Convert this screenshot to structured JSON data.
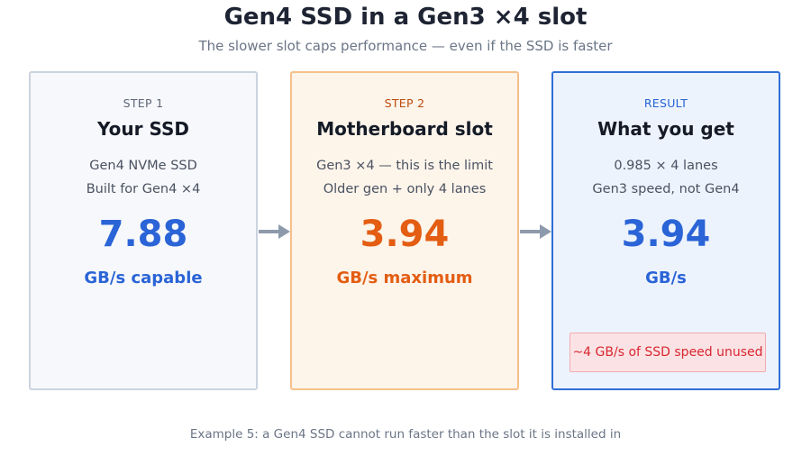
{
  "title": "Gen4 SSD in a Gen3 ×4 slot",
  "subtitle": "The slower slot caps performance — even if the SSD is faster",
  "cards": [
    {
      "step": "STEP 1",
      "heading": "Your SSD",
      "line1": "Gen4 NVMe SSD",
      "line2": "Built for Gen4 ×4",
      "value": "7.88",
      "unit": "GB/s capable",
      "accent_color": "#2a64d6"
    },
    {
      "step": "STEP 2",
      "heading": "Motherboard slot",
      "line1": "Gen3 ×4 — this is the limit",
      "line2": "Older gen + only 4 lanes",
      "value": "3.94",
      "unit": "GB/s maximum",
      "accent_color": "#e35d12"
    },
    {
      "step": "RESULT",
      "heading": "What you get",
      "line1": "0.985 × 4 lanes",
      "line2": "Gen3 speed, not Gen4",
      "value": "3.94",
      "unit": "GB/s",
      "accent_color": "#2a64d6",
      "warning": "~4 GB/s of SSD speed unused"
    }
  ],
  "caption": "Example 5: a Gen4 SSD cannot run faster than the slot it is installed in"
}
